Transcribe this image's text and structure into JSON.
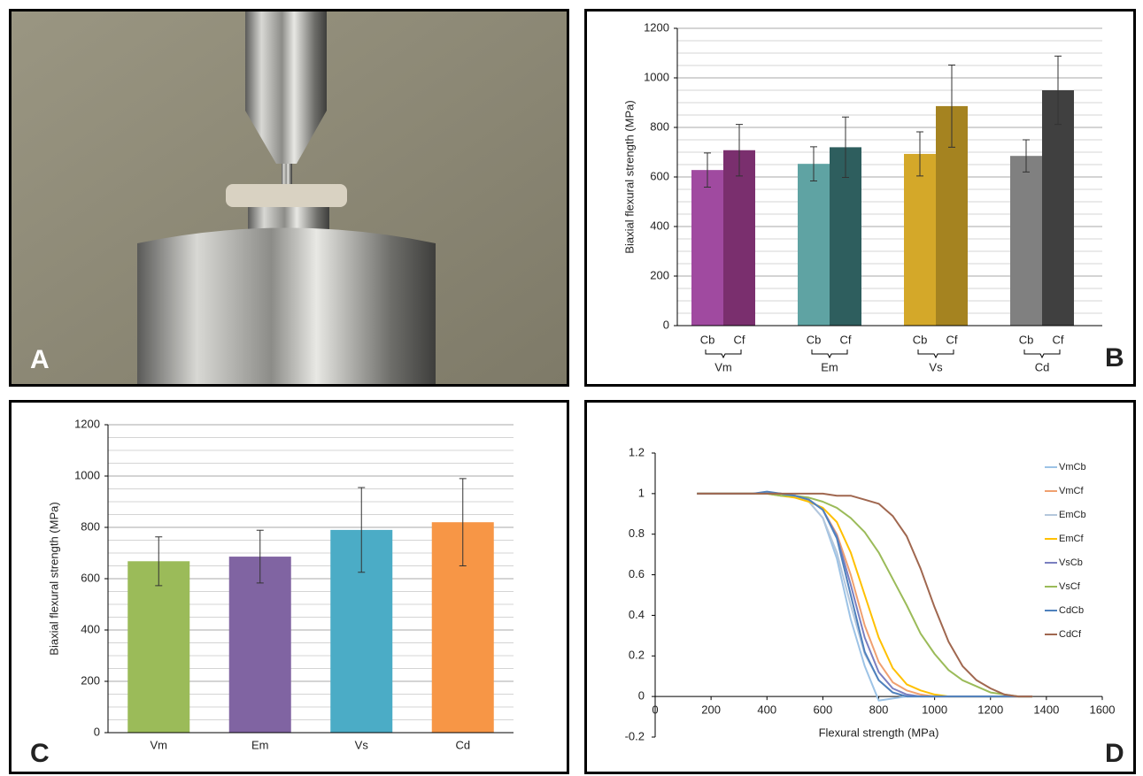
{
  "figure": {
    "panel_labels": [
      "A",
      "B",
      "C",
      "D"
    ]
  },
  "chart_data": [
    {
      "type": "bar",
      "ylabel": "Biaxial flexural strength (MPa)",
      "categories": [
        "Cb",
        "Cf",
        "Cb",
        "Cf",
        "Cb",
        "Cf",
        "Cb",
        "Cf"
      ],
      "groups": [
        "Vm",
        "Em",
        "Vs",
        "Cd"
      ],
      "values": [
        628,
        708,
        653,
        720,
        693,
        886,
        685,
        950
      ],
      "errors": [
        69,
        104,
        69,
        122,
        89,
        166,
        65,
        138
      ],
      "colors": [
        "#a04aa0",
        "#7a2f6e",
        "#5fa3a3",
        "#2e5e5e",
        "#d4a829",
        "#a58320",
        "#808080",
        "#404040"
      ],
      "ylim": [
        0,
        1200
      ],
      "yticks": [
        0,
        200,
        400,
        600,
        800,
        1000,
        1200
      ],
      "grid": true,
      "minor_grid_step": 50
    },
    {
      "type": "bar",
      "ylabel": "Biaxial flexural strength (MPa)",
      "categories": [
        "Vm",
        "Em",
        "Vs",
        "Cd"
      ],
      "values": [
        668,
        686,
        790,
        820
      ],
      "errors": [
        95,
        103,
        165,
        170
      ],
      "colors": [
        "#9bbb59",
        "#8064a2",
        "#4bacc6",
        "#f79646"
      ],
      "ylim": [
        0,
        1200
      ],
      "yticks": [
        0,
        200,
        400,
        600,
        800,
        1000,
        1200
      ],
      "grid": true,
      "minor_grid_step": 50
    },
    {
      "type": "line",
      "xlabel": "Flexural strength (MPa)",
      "x": [
        150,
        200,
        250,
        300,
        350,
        400,
        450,
        500,
        550,
        600,
        650,
        700,
        750,
        800,
        850,
        900,
        950,
        1000,
        1050,
        1100,
        1150,
        1200,
        1250,
        1300,
        1350
      ],
      "series": [
        {
          "name": "VmCb",
          "color": "#9dc3e6",
          "values": [
            1,
            1,
            1,
            1,
            1,
            1,
            1,
            0.99,
            0.96,
            0.88,
            0.68,
            0.38,
            0.15,
            -0.02,
            -0.01,
            0,
            0,
            0,
            0,
            0,
            0,
            0,
            0,
            0,
            0
          ]
        },
        {
          "name": "VmCf",
          "color": "#f0a070",
          "values": [
            1,
            1,
            1,
            1,
            1,
            1,
            1,
            0.99,
            0.97,
            0.92,
            0.8,
            0.6,
            0.35,
            0.17,
            0.07,
            0.03,
            0.01,
            0,
            0,
            0,
            0,
            0,
            0,
            0,
            0
          ]
        },
        {
          "name": "EmCb",
          "color": "#b4c7dc",
          "values": [
            1,
            1,
            1,
            1,
            1,
            1,
            1,
            0.99,
            0.96,
            0.88,
            0.71,
            0.45,
            0.21,
            0.08,
            0.02,
            0,
            0,
            0,
            0,
            0,
            0,
            0,
            0,
            0,
            0
          ]
        },
        {
          "name": "EmCf",
          "color": "#ffc000",
          "values": [
            1,
            1,
            1,
            1,
            1,
            1,
            0.99,
            0.98,
            0.96,
            0.93,
            0.86,
            0.71,
            0.5,
            0.29,
            0.14,
            0.06,
            0.03,
            0.01,
            0,
            0,
            0,
            0,
            0,
            0,
            0
          ]
        },
        {
          "name": "VsCb",
          "color": "#7a7fc0",
          "values": [
            1,
            1,
            1,
            1,
            1,
            1,
            1,
            0.99,
            0.97,
            0.92,
            0.79,
            0.55,
            0.29,
            0.12,
            0.04,
            0.01,
            0,
            0,
            0,
            0,
            0,
            0,
            0,
            0,
            0
          ]
        },
        {
          "name": "VsCf",
          "color": "#9bbb59",
          "values": [
            1,
            1,
            1,
            1,
            1,
            1,
            0.99,
            0.99,
            0.98,
            0.96,
            0.93,
            0.88,
            0.81,
            0.71,
            0.58,
            0.45,
            0.31,
            0.21,
            0.13,
            0.08,
            0.05,
            0.02,
            0.01,
            0,
            0
          ]
        },
        {
          "name": "CdCb",
          "color": "#4f81bd",
          "values": [
            1,
            1,
            1,
            1,
            1,
            1.01,
            1,
            0.99,
            0.97,
            0.92,
            0.78,
            0.5,
            0.22,
            0.08,
            0.02,
            0,
            0,
            0,
            0,
            0,
            0,
            0,
            0,
            0,
            0
          ]
        },
        {
          "name": "CdCf",
          "color": "#a0674f",
          "values": [
            1,
            1,
            1,
            1,
            1,
            1,
            1,
            1,
            1,
            1,
            0.99,
            0.99,
            0.97,
            0.95,
            0.89,
            0.79,
            0.63,
            0.44,
            0.27,
            0.15,
            0.08,
            0.04,
            0.01,
            0,
            0
          ]
        }
      ],
      "xlim": [
        0,
        1600
      ],
      "xticks": [
        0,
        200,
        400,
        600,
        800,
        1000,
        1200,
        1400,
        1600
      ],
      "ylim": [
        -0.2,
        1.2
      ],
      "yticks": [
        -0.2,
        0,
        0.2,
        0.4,
        0.6,
        0.8,
        1,
        1.2
      ],
      "grid": false,
      "legend": "right"
    }
  ]
}
